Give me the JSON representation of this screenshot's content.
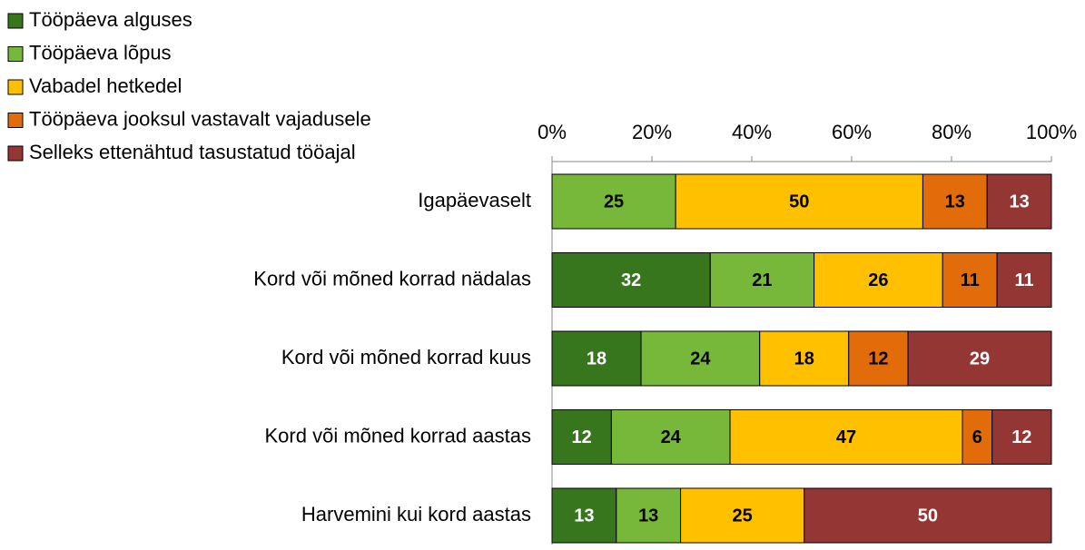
{
  "chart_data": {
    "type": "stacked_bar_horizontal_percent",
    "categories": [
      "Igapäevaselt",
      "Kord või mõned korrad nädalas",
      "Kord või mõned korrad kuus",
      "Kord või mõned korrad aastas",
      "Harvemini kui kord aastas"
    ],
    "series": [
      {
        "name": "Tööpäeva alguses",
        "color": "#38761d",
        "label_color": "#ffffff",
        "values": [
          null,
          32,
          18,
          12,
          13
        ]
      },
      {
        "name": "Tööpäeva lõpus",
        "color": "#77b83a",
        "label_color": "#000000",
        "values": [
          25,
          21,
          24,
          24,
          13
        ]
      },
      {
        "name": "Vabadel hetkedel",
        "color": "#ffc000",
        "label_color": "#000000",
        "values": [
          50,
          26,
          18,
          47,
          25
        ]
      },
      {
        "name": "Tööpäeva jooksul vastavalt vajadusele",
        "color": "#e36c0a",
        "label_color": "#000000",
        "values": [
          13,
          11,
          12,
          6,
          null
        ]
      },
      {
        "name": "Selleks ettenähtud tasustatud tööajal",
        "color": "#943634",
        "label_color": "#ffffff",
        "values": [
          13,
          11,
          29,
          12,
          50
        ]
      }
    ],
    "xlim": [
      0,
      100
    ],
    "xticks": [
      {
        "value": 0,
        "label": "0%"
      },
      {
        "value": 20,
        "label": "20%"
      },
      {
        "value": 40,
        "label": "40%"
      },
      {
        "value": 60,
        "label": "60%"
      },
      {
        "value": 80,
        "label": "80%"
      },
      {
        "value": 100,
        "label": "100%"
      }
    ],
    "legend": "top-left"
  }
}
